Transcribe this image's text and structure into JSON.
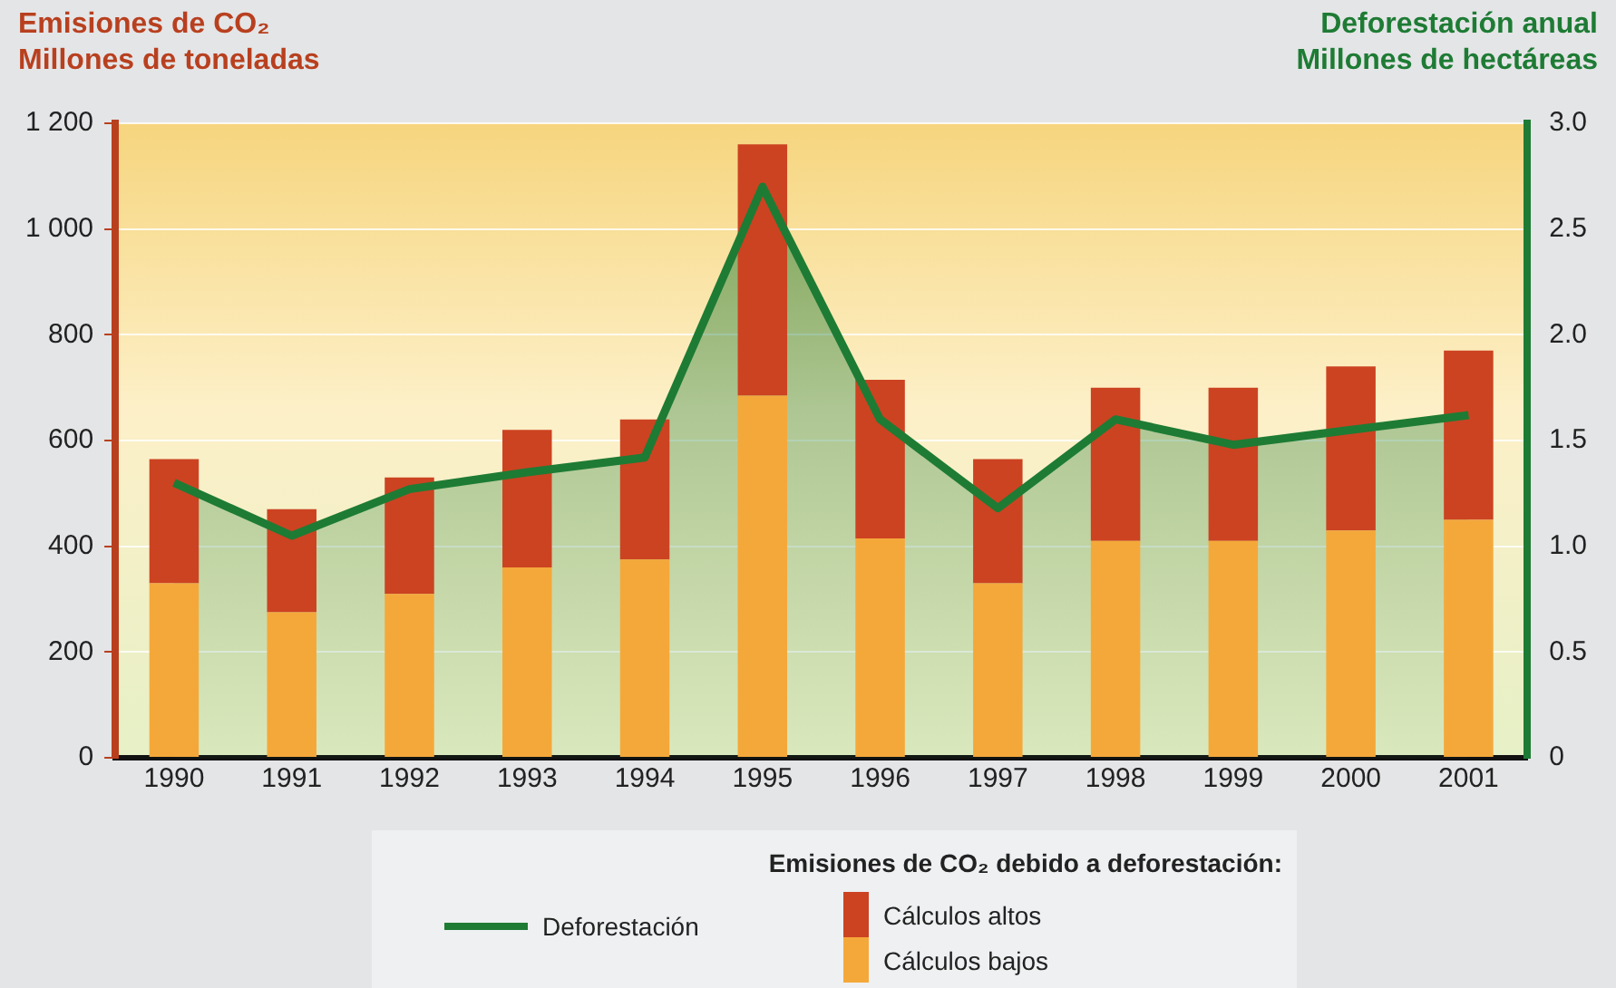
{
  "chart_data": {
    "type": "bar",
    "ylabel": "Emisiones de CO₂\nMillones de toneladas",
    "y2label": "Deforestación anual\nMillones de hectáreas",
    "legend_title": "Emisiones de CO₂ debido a deforestación:",
    "legend": "bottom",
    "stacked": true,
    "grid": "y",
    "categories": [
      "1990",
      "1991",
      "1992",
      "1993",
      "1994",
      "1995",
      "1996",
      "1997",
      "1998",
      "1999",
      "2000",
      "2001"
    ],
    "series": [
      {
        "name": "Cálculos bajos",
        "color": "#f5a83a",
        "values": [
          330,
          275,
          310,
          360,
          375,
          685,
          415,
          330,
          410,
          410,
          430,
          450
        ]
      },
      {
        "name": "Cálculos altos",
        "color": "#cc4322",
        "values": [
          235,
          195,
          220,
          260,
          265,
          475,
          300,
          235,
          290,
          290,
          310,
          320
        ]
      },
      {
        "name": "Deforestación",
        "type": "area",
        "axis": "y2",
        "color": "#1e7b34",
        "values": [
          1.3,
          1.05,
          1.27,
          1.35,
          1.42,
          2.7,
          1.6,
          1.18,
          1.6,
          1.48,
          1.55,
          1.62
        ]
      }
    ],
    "ylim": [
      0,
      1200
    ],
    "yticks": [
      0,
      200,
      400,
      600,
      800,
      {
        "value": 1000,
        "label": "1 000"
      },
      {
        "value": 1200,
        "label": "1 200"
      }
    ],
    "y2lim": [
      0,
      3
    ],
    "y2ticks": [
      0,
      0.5,
      {
        "value": 1,
        "label": "1.0"
      },
      1.5,
      {
        "value": 2,
        "label": "2.0"
      },
      2.5,
      {
        "value": 3,
        "label": "3.0"
      }
    ]
  }
}
